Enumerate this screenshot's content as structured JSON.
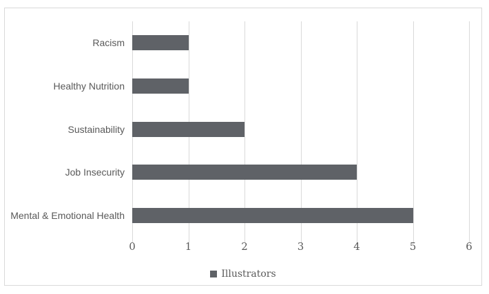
{
  "chart_data": {
    "type": "bar",
    "orientation": "horizontal",
    "title": "",
    "xlabel": "",
    "ylabel": "",
    "categories": [
      "Racism",
      "Healthy Nutrition",
      "Sustainability",
      "Job Insecurity",
      "Mental & Emotional Health"
    ],
    "series": [
      {
        "name": "Illustrators",
        "values": [
          1,
          1,
          2,
          4,
          5
        ]
      }
    ],
    "xlim": [
      0,
      6
    ],
    "xticks": [
      0,
      1,
      2,
      3,
      4,
      5,
      6
    ],
    "grid": true,
    "legend_position": "bottom",
    "bar_color": "#5f6267",
    "gridline_color": "#d9d9d9",
    "border_color": "#d9d9d9",
    "text_color": "#595959"
  }
}
